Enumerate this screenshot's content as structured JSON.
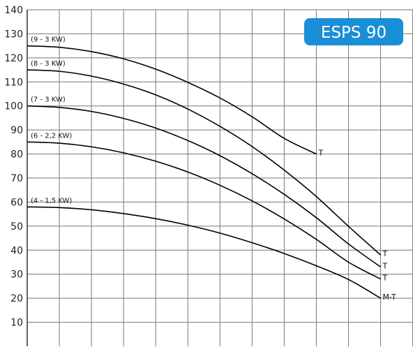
{
  "chart_data": {
    "type": "line",
    "title": "",
    "badge": "ESPS 90",
    "xlabel": "",
    "ylabel": "",
    "ylim": [
      0,
      140
    ],
    "yticks": [
      10,
      20,
      30,
      40,
      50,
      60,
      70,
      80,
      90,
      100,
      110,
      120,
      130,
      140
    ],
    "x_grid_lines": 15,
    "grid": true,
    "colors": {
      "line": "#000000",
      "grid": "#777777",
      "badge_bg": "#1a8fd8",
      "badge_text": "#ffffff"
    },
    "series": [
      {
        "name": "(9 - 3 KW)",
        "end_label": "T",
        "points": [
          [
            0,
            125
          ],
          [
            1,
            124.4
          ],
          [
            2,
            122.6
          ],
          [
            3,
            119.6
          ],
          [
            4,
            115.3
          ],
          [
            5,
            109.8
          ],
          [
            6,
            103.3
          ],
          [
            7,
            95.5
          ],
          [
            8,
            86.5
          ],
          [
            9,
            80
          ]
        ]
      },
      {
        "name": "(8 - 3 KW)",
        "end_label": "T",
        "points": [
          [
            0,
            115
          ],
          [
            1,
            114.4
          ],
          [
            2,
            112.4
          ],
          [
            3,
            109.1
          ],
          [
            4,
            104.6
          ],
          [
            5,
            98.7
          ],
          [
            6,
            91.5
          ],
          [
            7,
            83.1
          ],
          [
            8,
            73.3
          ],
          [
            9,
            62.3
          ],
          [
            10,
            49.9
          ],
          [
            11,
            38
          ]
        ]
      },
      {
        "name": "(7 - 3 KW)",
        "end_label": "T",
        "points": [
          [
            0,
            100
          ],
          [
            1,
            99.4
          ],
          [
            2,
            97.7
          ],
          [
            3,
            94.8
          ],
          [
            4,
            90.8
          ],
          [
            5,
            85.6
          ],
          [
            6,
            79.3
          ],
          [
            7,
            71.8
          ],
          [
            8,
            63.2
          ],
          [
            9,
            53.5
          ],
          [
            10,
            42.6
          ],
          [
            11,
            33
          ]
        ]
      },
      {
        "name": "(6 - 2,2 KW)",
        "end_label": "T",
        "points": [
          [
            0,
            85
          ],
          [
            1,
            84.5
          ],
          [
            2,
            83
          ],
          [
            3,
            80.5
          ],
          [
            4,
            77
          ],
          [
            5,
            72.5
          ],
          [
            6,
            67
          ],
          [
            7,
            60.5
          ],
          [
            8,
            53
          ],
          [
            9,
            44.5
          ],
          [
            10,
            35
          ],
          [
            11,
            28
          ]
        ]
      },
      {
        "name": "(4 - 1,5 KW)",
        "end_label": "M-T",
        "points": [
          [
            0,
            58
          ],
          [
            1,
            57.7
          ],
          [
            2,
            56.8
          ],
          [
            3,
            55.2
          ],
          [
            4,
            53.1
          ],
          [
            5,
            50.4
          ],
          [
            6,
            47.1
          ],
          [
            7,
            43.1
          ],
          [
            8,
            38.6
          ],
          [
            9,
            33.5
          ],
          [
            10,
            27.8
          ],
          [
            11,
            20
          ]
        ]
      }
    ]
  }
}
